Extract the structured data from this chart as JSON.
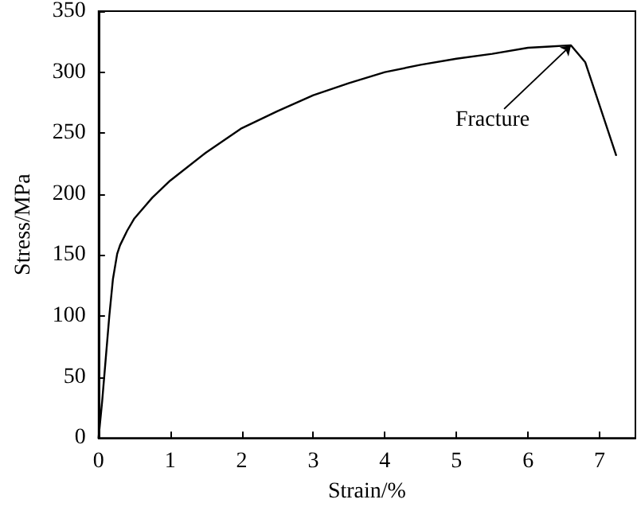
{
  "chart_data": {
    "type": "line",
    "xlabel": "Strain/%",
    "ylabel": "Stress/MPa",
    "series": [
      {
        "color": "#000000",
        "x": [
          0,
          0.05,
          0.1,
          0.15,
          0.2,
          0.26,
          0.3,
          0.4,
          0.5,
          0.75,
          1.0,
          1.5,
          2.0,
          2.5,
          3.0,
          3.5,
          4.0,
          4.5,
          5.0,
          5.5,
          6.0,
          6.3,
          6.6,
          6.8,
          7.23
        ],
        "values": [
          0,
          30,
          65,
          100,
          130,
          151,
          158,
          170,
          180,
          197,
          211,
          234,
          254,
          268,
          281,
          291,
          300,
          306,
          311,
          315,
          320,
          321,
          322,
          308,
          232
        ]
      }
    ],
    "xlim": [
      0,
      7.5
    ],
    "xticks": [
      0,
      1,
      2,
      3,
      4,
      5,
      6,
      7
    ],
    "ylim": [
      0,
      350
    ],
    "yticks": [
      0,
      50,
      100,
      150,
      200,
      250,
      300,
      350
    ],
    "grid": false,
    "marker": "none",
    "line_style": "solid",
    "annotations": [
      {
        "text": "Fracture",
        "x": 6.6,
        "y": 322
      }
    ]
  }
}
